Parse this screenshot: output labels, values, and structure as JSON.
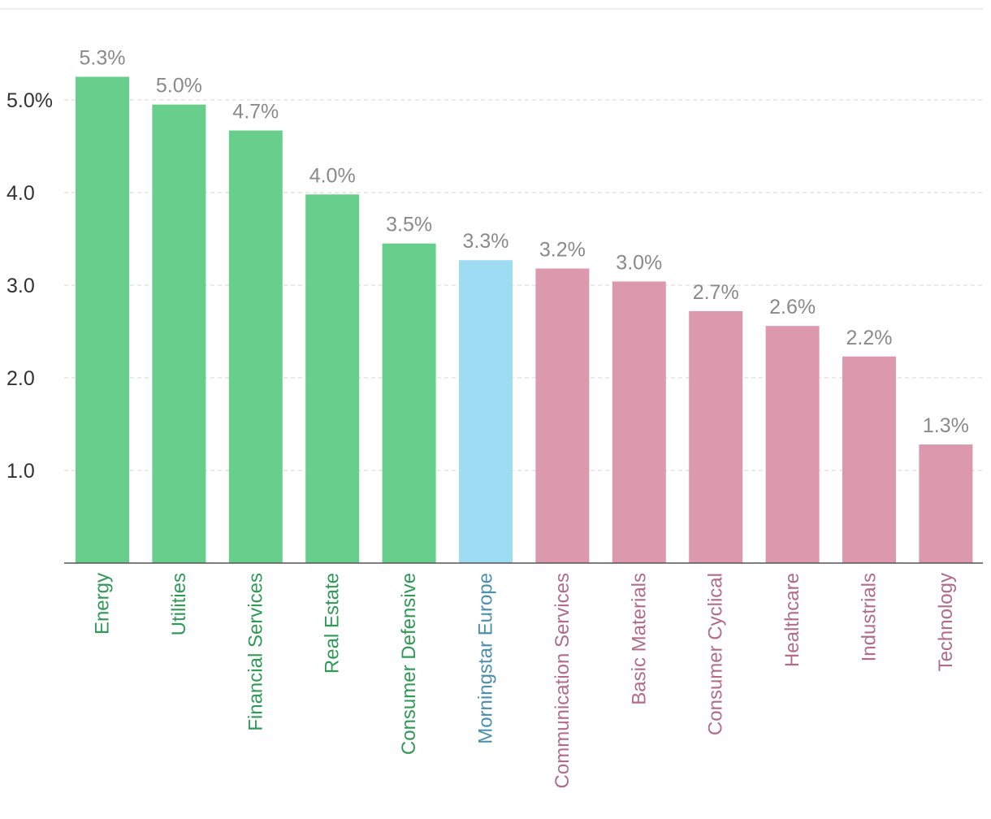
{
  "chart_data": {
    "type": "bar",
    "title": "",
    "xlabel": "",
    "ylabel": "",
    "ylim": [
      0,
      5.3
    ],
    "yticks": [
      1.0,
      2.0,
      3.0,
      4.0,
      5.0
    ],
    "ytick_labels": [
      "1.0",
      "2.0",
      "3.0",
      "4.0",
      "5.0%"
    ],
    "grid": true,
    "categories": [
      "Energy",
      "Utilities",
      "Financial Services",
      "Real Estate",
      "Consumer Defensive",
      "Morningstar Europe",
      "Communication Services",
      "Basic Materials",
      "Consumer Cyclical",
      "Healthcare",
      "Industrials",
      "Technology"
    ],
    "values": [
      5.25,
      4.95,
      4.67,
      3.98,
      3.45,
      3.27,
      3.18,
      3.04,
      2.72,
      2.56,
      2.23,
      1.28
    ],
    "value_labels": [
      "5.3%",
      "5.0%",
      "4.7%",
      "4.0%",
      "3.5%",
      "3.3%",
      "3.2%",
      "3.0%",
      "2.7%",
      "2.6%",
      "2.2%",
      "1.3%"
    ],
    "groups": [
      "above",
      "above",
      "above",
      "above",
      "above",
      "benchmark",
      "below",
      "below",
      "below",
      "below",
      "below",
      "below"
    ]
  },
  "colors": {
    "above_bar": "#67cf8b",
    "above_text": "#2e9a55",
    "benchmark_bar": "#9edcf3",
    "benchmark_text": "#4a8fae",
    "below_bar": "#dc98ad",
    "below_text": "#b26c85"
  }
}
